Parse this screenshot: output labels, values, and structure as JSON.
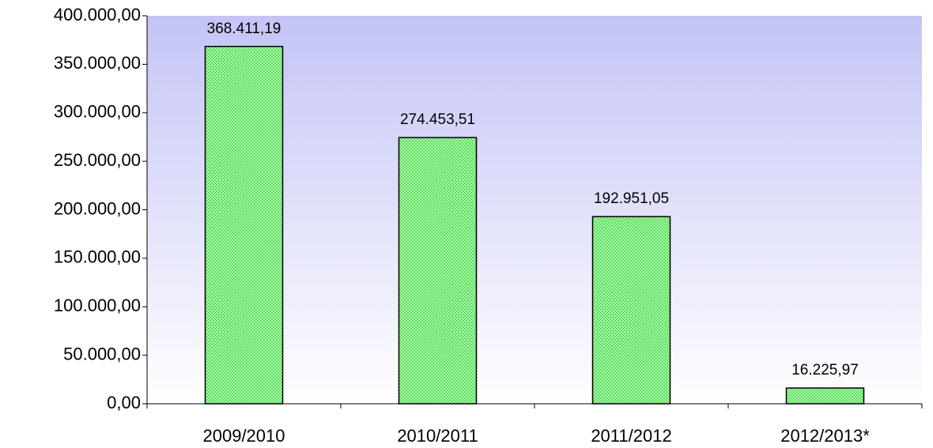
{
  "chart_data": {
    "type": "bar",
    "categories": [
      "2009/2010",
      "2010/2011",
      "2011/2012",
      "2012/2013*"
    ],
    "values": [
      368411.19,
      274453.51,
      192951.05,
      16225.97
    ],
    "value_labels": [
      "368.411,19",
      "274.453,51",
      "192.951,05",
      "16.225,97"
    ],
    "color": "#99ff99",
    "ylim": [
      0,
      400000
    ],
    "yticks": [
      {
        "value": 0,
        "label": "0,00"
      },
      {
        "value": 50000,
        "label": "50.000,00"
      },
      {
        "value": 100000,
        "label": "100.000,00"
      },
      {
        "value": 150000,
        "label": "150.000,00"
      },
      {
        "value": 200000,
        "label": "200.000,00"
      },
      {
        "value": 250000,
        "label": "250.000,00"
      },
      {
        "value": 300000,
        "label": "300.000,00"
      },
      {
        "value": 350000,
        "label": "350.000,00"
      },
      {
        "value": 400000,
        "label": "400.000,00"
      }
    ],
    "grid": false
  }
}
